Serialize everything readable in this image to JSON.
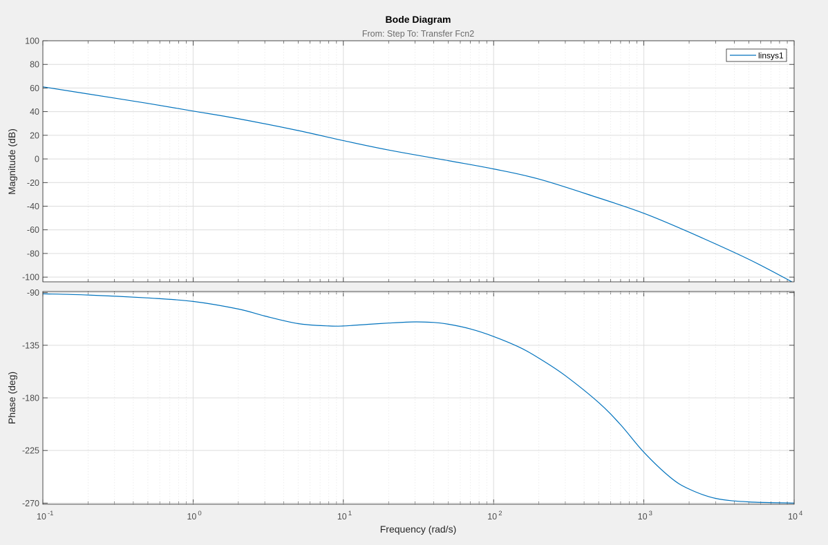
{
  "colors": {
    "figure_background": "#f0f0f0",
    "axes_background": "#ffffff",
    "line": "#0072bd",
    "major_grid": "#dcdcdc",
    "minor_grid": "#e8e8e8",
    "axis_edge": "#262626"
  },
  "chart_data": {
    "type": "line",
    "title": "Bode Diagram",
    "subtitle": "From: Step  To: Transfer Fcn2",
    "xlabel": "Frequency  (rad/s)",
    "xscale": "log",
    "xlim": [
      0.1,
      10000
    ],
    "x_ticks": [
      {
        "value": 0.1,
        "base": "10",
        "exp": "-1"
      },
      {
        "value": 1,
        "base": "10",
        "exp": "0"
      },
      {
        "value": 10,
        "base": "10",
        "exp": "1"
      },
      {
        "value": 100,
        "base": "10",
        "exp": "2"
      },
      {
        "value": 1000,
        "base": "10",
        "exp": "3"
      },
      {
        "value": 10000,
        "base": "10",
        "exp": "4"
      }
    ],
    "grid": true,
    "legend": {
      "position": "top-right",
      "entries": [
        "linsys1"
      ]
    },
    "magnitude": {
      "ylabel": "Magnitude (dB)",
      "ylim": [
        -104,
        100
      ],
      "yticks": [
        100,
        80,
        60,
        40,
        20,
        0,
        -20,
        -40,
        -60,
        -80,
        -100
      ],
      "ytick_labels": [
        "100",
        "80",
        "60",
        "40",
        "20",
        "0",
        "-20",
        "-40",
        "-60",
        "-80",
        "-100"
      ],
      "series": [
        {
          "name": "linsys1",
          "x": [
            0.1,
            0.2,
            0.5,
            1,
            2,
            5,
            10,
            20,
            50,
            100,
            200,
            500,
            1000,
            2000,
            5000,
            10000
          ],
          "y": [
            61,
            55,
            47,
            40.5,
            34,
            24,
            15.5,
            7.5,
            -1.5,
            -8.5,
            -17,
            -33,
            -46,
            -62,
            -85,
            -105
          ]
        }
      ]
    },
    "phase": {
      "ylabel": "Phase (deg)",
      "ylim": [
        -271,
        -89
      ],
      "yticks": [
        -90,
        -135,
        -180,
        -225,
        -270
      ],
      "ytick_labels": [
        "-90",
        "-135",
        "-180",
        "-225",
        "-270"
      ],
      "series": [
        {
          "name": "linsys1",
          "x": [
            0.1,
            0.2,
            0.5,
            1,
            2,
            3,
            5,
            8,
            10,
            15,
            20,
            30,
            40,
            50,
            70,
            100,
            150,
            200,
            300,
            500,
            700,
            1000,
            1500,
            2000,
            3000,
            5000,
            10000
          ],
          "y": [
            -91,
            -92,
            -94.5,
            -97.5,
            -104,
            -110,
            -116.5,
            -118.5,
            -118.5,
            -117,
            -116,
            -115,
            -115.5,
            -117,
            -121,
            -127.5,
            -137,
            -146,
            -161,
            -184,
            -203,
            -226.5,
            -248,
            -258,
            -266,
            -269,
            -270
          ]
        }
      ]
    }
  }
}
